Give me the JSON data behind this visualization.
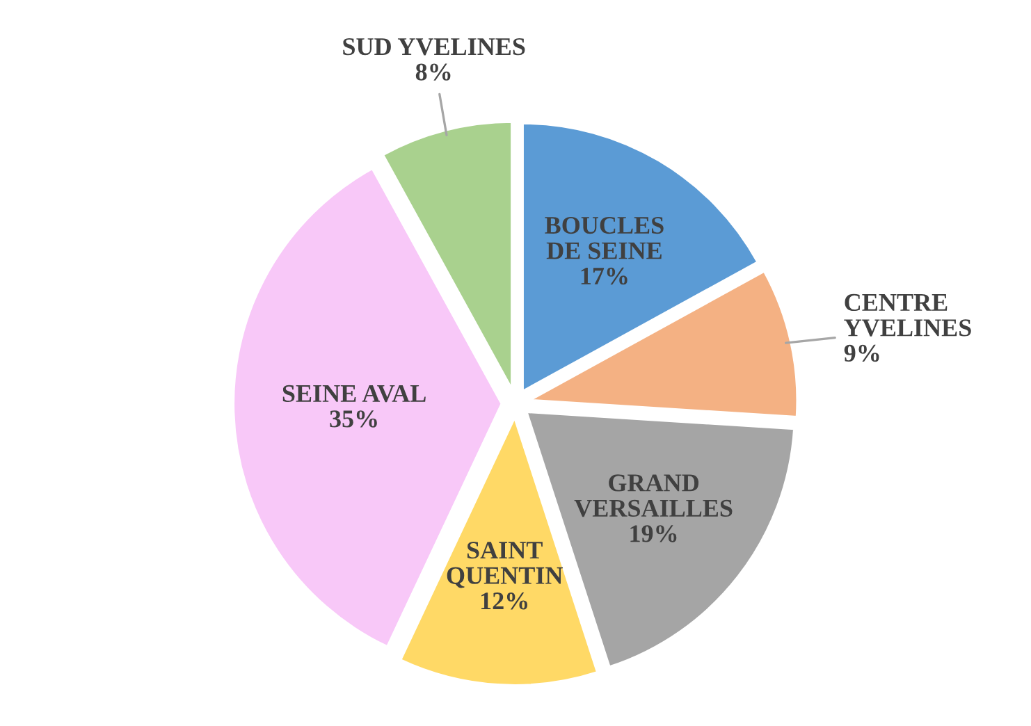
{
  "chart_data": {
    "type": "pie",
    "categories": [
      "BOUCLES DE SEINE",
      "CENTRE YVELINES",
      "GRAND VERSAILLES",
      "SAINT QUENTIN",
      "SEINE AVAL",
      "SUD YVELINES"
    ],
    "values": [
      17,
      9,
      19,
      12,
      35,
      8
    ],
    "value_labels": [
      "17%",
      "9%",
      "19%",
      "12%",
      "35%",
      "8%"
    ],
    "colors": [
      "#5b9bd5",
      "#f4b183",
      "#a5a5a5",
      "#ffd966",
      "#f8c8f8",
      "#a9d18e"
    ]
  }
}
